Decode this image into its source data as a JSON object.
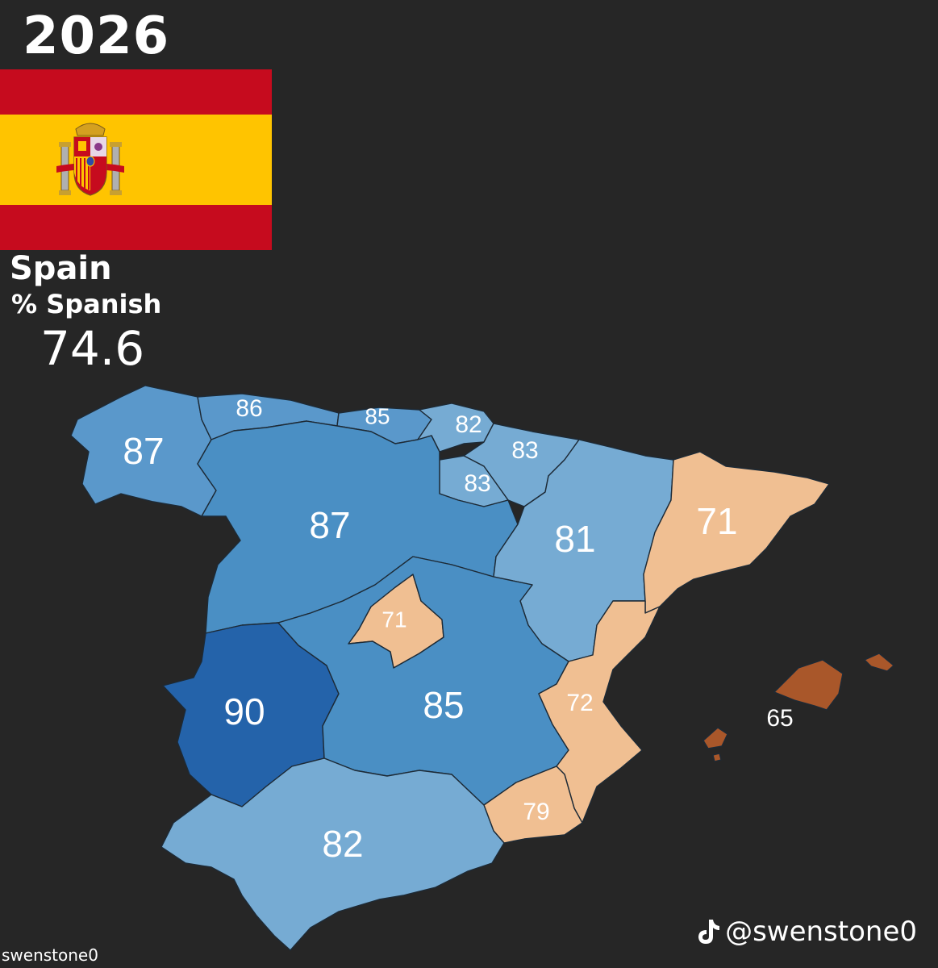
{
  "year": "2026",
  "country": "Spain",
  "metric": "% Spanish",
  "national_value": "74.6",
  "colors": {
    "background": "#262626",
    "flag_red": "#c60b1e",
    "flag_yellow": "#ffc400",
    "blue_90": "#2463aa",
    "blue_85_87": "#4a8fc4",
    "blue_81_83": "#76abd3",
    "orange_low": "#f0bf92",
    "orange_dark": "#a9572a"
  },
  "regions": [
    {
      "name": "Galicia",
      "value": "87",
      "color": "#5a98cb"
    },
    {
      "name": "Asturias",
      "value": "86",
      "color": "#5a98cb"
    },
    {
      "name": "Cantabria",
      "value": "85",
      "color": "#5a98cb"
    },
    {
      "name": "Basque Country",
      "value": "82",
      "color": "#76abd3"
    },
    {
      "name": "Navarre",
      "value": "83",
      "color": "#76abd3"
    },
    {
      "name": "La Rioja",
      "value": "83",
      "color": "#76abd3"
    },
    {
      "name": "Castile and León",
      "value": "87",
      "color": "#4a8fc4"
    },
    {
      "name": "Aragon",
      "value": "81",
      "color": "#76abd3"
    },
    {
      "name": "Catalonia",
      "value": "71",
      "color": "#f0bf92"
    },
    {
      "name": "Madrid",
      "value": "71",
      "color": "#f0bf92"
    },
    {
      "name": "Extremadura",
      "value": "90",
      "color": "#2463aa"
    },
    {
      "name": "Castilla-La Mancha",
      "value": "85",
      "color": "#4a8fc4"
    },
    {
      "name": "Valencia",
      "value": "72",
      "color": "#f0bf92"
    },
    {
      "name": "Murcia",
      "value": "79",
      "color": "#f0bf92"
    },
    {
      "name": "Andalusia",
      "value": "82",
      "color": "#76abd3"
    },
    {
      "name": "Balearic Islands",
      "value": "65",
      "color": "#a9572a"
    }
  ],
  "handle": "@swenstone0",
  "icons": {
    "tiktok": "tiktok-icon"
  },
  "watermark": "swenstone0"
}
